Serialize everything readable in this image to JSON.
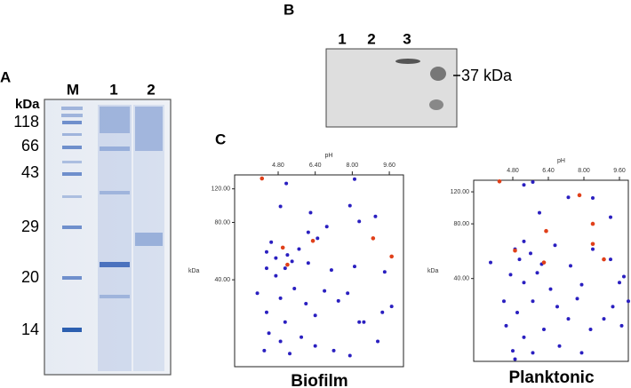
{
  "panels": {
    "A": {
      "label": "A",
      "unit": "kDa",
      "lanes": [
        "M",
        "1",
        "2"
      ],
      "markers": [
        "118",
        "66",
        "43",
        "29",
        "20",
        "14"
      ]
    },
    "B": {
      "label": "B",
      "lanes": [
        "1",
        "2",
        "3"
      ],
      "band_label": "37 kDa"
    },
    "C": {
      "label": "C"
    }
  },
  "chart_data": [
    {
      "type": "scatter",
      "title": "Biofilm",
      "xlabel": "pH",
      "ylabel": "kDa",
      "log_y": true,
      "xlim": [
        2.92,
        10.25
      ],
      "ylim": [
        14,
        142
      ],
      "xticks": [
        {
          "value": 4.8,
          "label": "4.80"
        },
        {
          "value": 6.4,
          "label": "6.40"
        },
        {
          "value": 8.0,
          "label": "8.00"
        },
        {
          "value": 9.6,
          "label": "9.60"
        }
      ],
      "yticks": [
        {
          "value": 40,
          "label": "40.00"
        },
        {
          "value": 80,
          "label": "80.00"
        },
        {
          "value": 120,
          "label": "120.00"
        }
      ],
      "series": [
        {
          "color": "#2a1fc0",
          "x": [
            5.15,
            8.1,
            4.9,
            6.2,
            7.9,
            6.1,
            6.9,
            8.3,
            9.0,
            4.5,
            4.3,
            4.7,
            5.2,
            5.4,
            5.7,
            6.1,
            6.5,
            4.3,
            4.7,
            5.1,
            7.1,
            8.1,
            9.4,
            3.9,
            4.9,
            5.5,
            6.0,
            6.8,
            7.4,
            4.3,
            5.1,
            6.4,
            7.8,
            9.3,
            9.7,
            4.4,
            5.8,
            6.4,
            8.5,
            8.3,
            5.3,
            4.2,
            7.2,
            7.9,
            9.1,
            4.9
          ],
          "values": [
            128,
            135,
            97,
            90,
            98,
            71,
            76,
            81,
            86,
            63,
            56,
            52,
            54,
            50,
            58,
            49,
            66,
            46,
            42,
            46,
            45,
            47,
            44,
            34,
            32,
            36,
            30,
            35,
            31,
            27,
            24,
            26,
            34,
            27,
            29,
            21,
            20,
            18,
            24,
            24,
            16.4,
            17,
            17,
            16,
            19,
            19
          ]
        },
        {
          "color": "#e0401a",
          "x": [
            4.1,
            5.0,
            6.3,
            5.2,
            8.9,
            9.7
          ],
          "values": [
            136,
            59,
            64,
            48,
            66,
            53
          ]
        }
      ]
    },
    {
      "type": "scatter",
      "title": "Planktonic",
      "xlabel": "pH",
      "ylabel": "kDa",
      "log_y": true,
      "xlim": [
        3.04,
        10.04
      ],
      "ylim": [
        14,
        139
      ],
      "xticks": [
        {
          "value": 4.8,
          "label": "4.80"
        },
        {
          "value": 6.4,
          "label": "6.40"
        },
        {
          "value": 8.0,
          "label": "8.00"
        },
        {
          "value": 9.6,
          "label": "9.60"
        }
      ],
      "yticks": [
        {
          "value": 40,
          "label": "40.00"
        },
        {
          "value": 80,
          "label": "80.00"
        },
        {
          "value": 120,
          "label": "120.00"
        }
      ],
      "series": [
        {
          "color": "#2a1fc0",
          "x": [
            5.3,
            5.7,
            7.3,
            8.4,
            6.0,
            9.2,
            3.8,
            4.9,
            5.3,
            5.1,
            5.6,
            6.1,
            6.7,
            7.4,
            8.4,
            9.2,
            4.7,
            5.3,
            5.9,
            6.5,
            7.9,
            9.6,
            9.8,
            4.4,
            5.0,
            5.7,
            6.8,
            7.7,
            8.9,
            9.3,
            4.5,
            5.3,
            6.2,
            7.3,
            8.3,
            9.7,
            4.8,
            5.7,
            6.9,
            7.9,
            4.9,
            10.0
          ],
          "values": [
            131,
            136,
            112,
            111,
            92,
            87,
            49,
            58,
            64,
            51,
            55,
            48,
            61,
            47,
            58,
            51,
            42,
            38,
            43,
            35,
            37,
            38,
            41,
            30,
            26,
            30,
            28,
            31,
            24,
            28,
            22,
            19,
            21,
            24,
            21,
            22,
            16,
            15.6,
            17,
            15.6,
            14.4,
            30
          ]
        },
        {
          "color": "#e0401a",
          "x": [
            4.2,
            7.8,
            6.3,
            8.4,
            8.4,
            4.9,
            8.9,
            6.2
          ],
          "values": [
            137,
            115,
            73,
            80,
            62,
            57,
            51,
            49
          ]
        }
      ]
    }
  ]
}
